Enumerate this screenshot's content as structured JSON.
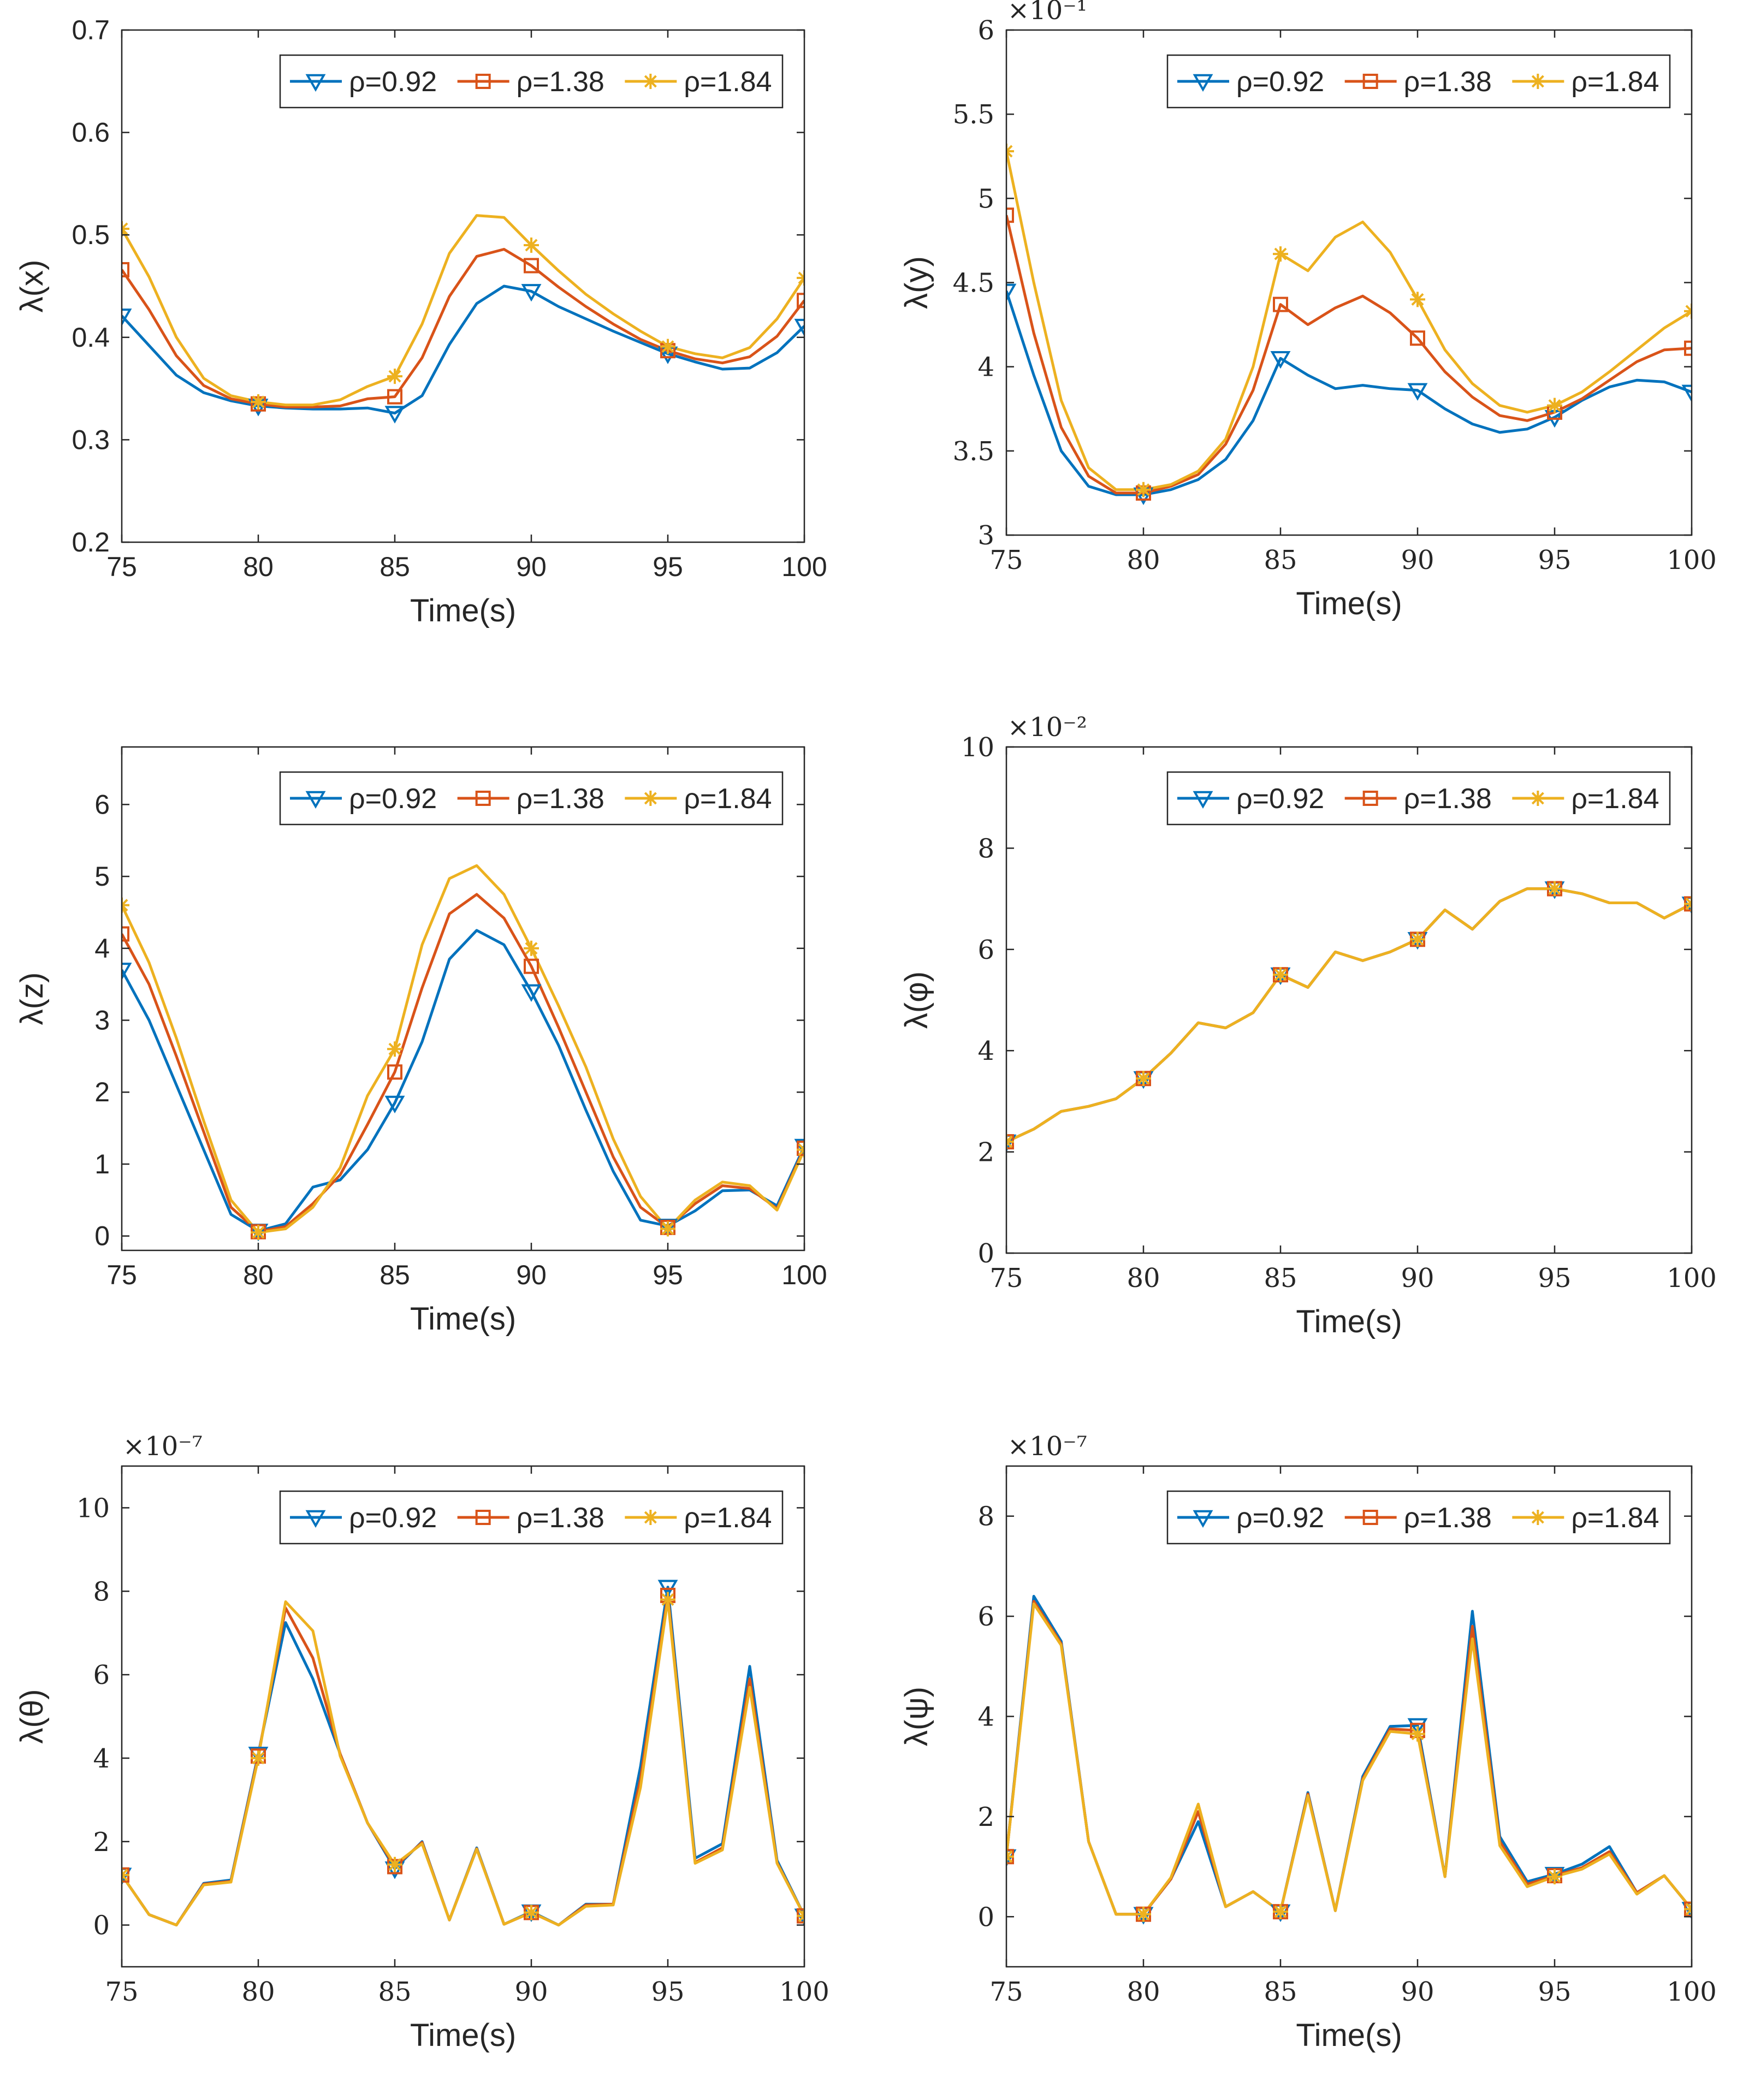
{
  "figure_title": "",
  "colors": {
    "blue": "#0072BD",
    "orange": "#D95319",
    "yellow": "#EDB120"
  },
  "chart_data": [
    {
      "type": "line",
      "name": "lambda-x",
      "xlabel": "Time(s)",
      "ylabel": "λ(x)",
      "xlim": [
        75,
        100
      ],
      "ylim": [
        0.2,
        0.7
      ],
      "xticks": [
        75,
        80,
        85,
        90,
        95,
        100
      ],
      "xtick_labels": [
        "75",
        "80",
        "85",
        "90",
        "95",
        "100"
      ],
      "yticks": [
        0.2,
        0.3,
        0.4,
        0.5,
        0.6,
        0.7
      ],
      "ytick_labels": [
        "0.2",
        "0.3",
        "0.4",
        "0.5",
        "0.6",
        "0.7"
      ],
      "tick_font": "sans",
      "exponent_label": "",
      "legend_position": "top-right",
      "x": [
        75,
        76,
        77,
        78,
        79,
        80,
        81,
        82,
        83,
        84,
        85,
        86,
        87,
        88,
        89,
        90,
        91,
        92,
        93,
        94,
        95,
        96,
        97,
        98,
        99,
        100
      ],
      "marker_x": [
        75,
        80,
        85,
        90,
        95,
        100
      ],
      "series": [
        {
          "name": "ρ=0.92",
          "color": "#0072BD",
          "marker": "triangle-down",
          "values": [
            0.421,
            0.392,
            0.363,
            0.346,
            0.338,
            0.333,
            0.331,
            0.33,
            0.33,
            0.331,
            0.326,
            0.343,
            0.393,
            0.433,
            0.45,
            0.445,
            0.43,
            0.418,
            0.406,
            0.395,
            0.384,
            0.376,
            0.369,
            0.37,
            0.385,
            0.411
          ]
        },
        {
          "name": "ρ=1.38",
          "color": "#D95319",
          "marker": "square",
          "values": [
            0.466,
            0.427,
            0.382,
            0.353,
            0.34,
            0.335,
            0.332,
            0.332,
            0.333,
            0.34,
            0.342,
            0.38,
            0.44,
            0.479,
            0.486,
            0.47,
            0.449,
            0.43,
            0.413,
            0.398,
            0.387,
            0.379,
            0.375,
            0.381,
            0.401,
            0.436
          ]
        },
        {
          "name": "ρ=1.84",
          "color": "#EDB120",
          "marker": "asterisk",
          "values": [
            0.506,
            0.459,
            0.4,
            0.36,
            0.343,
            0.337,
            0.334,
            0.334,
            0.339,
            0.352,
            0.362,
            0.413,
            0.482,
            0.519,
            0.517,
            0.49,
            0.465,
            0.442,
            0.423,
            0.406,
            0.391,
            0.384,
            0.38,
            0.39,
            0.418,
            0.458
          ]
        }
      ]
    },
    {
      "type": "line",
      "name": "lambda-y",
      "xlabel": "Time(s)",
      "ylabel": "λ(y)",
      "xlim": [
        75,
        100
      ],
      "ylim": [
        3,
        6
      ],
      "xticks": [
        75,
        80,
        85,
        90,
        95,
        100
      ],
      "xtick_labels": [
        "75",
        "80",
        "85",
        "90",
        "95",
        "100"
      ],
      "yticks": [
        3,
        3.5,
        4,
        4.5,
        5,
        5.5,
        6
      ],
      "ytick_labels": [
        "3",
        "3.5",
        "4",
        "4.5",
        "5",
        "5.5",
        "6"
      ],
      "tick_font": "serif",
      "exponent_label": "×10⁻¹",
      "legend_position": "top-right",
      "x": [
        75,
        76,
        77,
        78,
        79,
        80,
        81,
        82,
        83,
        84,
        85,
        86,
        87,
        88,
        89,
        90,
        91,
        92,
        93,
        94,
        95,
        96,
        97,
        98,
        99,
        100
      ],
      "marker_x": [
        75,
        80,
        85,
        90,
        95,
        100
      ],
      "series": [
        {
          "name": "ρ=0.92",
          "color": "#0072BD",
          "marker": "triangle-down",
          "values": [
            4.45,
            3.95,
            3.5,
            3.29,
            3.24,
            3.24,
            3.27,
            3.33,
            3.45,
            3.68,
            4.05,
            3.95,
            3.87,
            3.89,
            3.87,
            3.86,
            3.75,
            3.66,
            3.61,
            3.63,
            3.7,
            3.8,
            3.88,
            3.92,
            3.91,
            3.85
          ]
        },
        {
          "name": "ρ=1.38",
          "color": "#D95319",
          "marker": "square",
          "values": [
            4.9,
            4.2,
            3.64,
            3.35,
            3.25,
            3.25,
            3.29,
            3.36,
            3.54,
            3.86,
            4.37,
            4.25,
            4.35,
            4.42,
            4.32,
            4.17,
            3.97,
            3.82,
            3.71,
            3.68,
            3.73,
            3.81,
            3.92,
            4.03,
            4.1,
            4.11
          ]
        },
        {
          "name": "ρ=1.84",
          "color": "#EDB120",
          "marker": "asterisk",
          "values": [
            5.28,
            4.5,
            3.8,
            3.4,
            3.27,
            3.27,
            3.3,
            3.38,
            3.57,
            4.0,
            4.67,
            4.57,
            4.77,
            4.86,
            4.68,
            4.4,
            4.1,
            3.9,
            3.77,
            3.73,
            3.77,
            3.85,
            3.97,
            4.1,
            4.23,
            4.33
          ]
        }
      ]
    },
    {
      "type": "line",
      "name": "lambda-z",
      "xlabel": "Time(s)",
      "ylabel": "λ(z)",
      "xlim": [
        75,
        100
      ],
      "ylim": [
        -0.2,
        6.8
      ],
      "xticks": [
        75,
        80,
        85,
        90,
        95,
        100
      ],
      "xtick_labels": [
        "75",
        "80",
        "85",
        "90",
        "95",
        "100"
      ],
      "yticks": [
        0,
        1,
        2,
        3,
        4,
        5,
        6
      ],
      "ytick_labels": [
        "0",
        "1",
        "2",
        "3",
        "4",
        "5",
        "6"
      ],
      "tick_font": "sans",
      "exponent_label": "",
      "legend_position": "top-right",
      "x": [
        75,
        76,
        77,
        78,
        79,
        80,
        81,
        82,
        83,
        84,
        85,
        86,
        87,
        88,
        89,
        90,
        91,
        92,
        93,
        94,
        95,
        96,
        97,
        98,
        99,
        100
      ],
      "marker_x": [
        75,
        80,
        85,
        90,
        95,
        100
      ],
      "series": [
        {
          "name": "ρ=0.92",
          "color": "#0072BD",
          "marker": "triangle-down",
          "values": [
            3.7,
            3.0,
            2.1,
            1.2,
            0.3,
            0.07,
            0.17,
            0.68,
            0.78,
            1.2,
            1.85,
            2.7,
            3.85,
            4.25,
            4.05,
            3.4,
            2.65,
            1.75,
            0.9,
            0.22,
            0.14,
            0.35,
            0.63,
            0.64,
            0.42,
            1.25
          ]
        },
        {
          "name": "ρ=1.38",
          "color": "#D95319",
          "marker": "square",
          "values": [
            4.2,
            3.5,
            2.5,
            1.45,
            0.4,
            0.06,
            0.13,
            0.45,
            0.85,
            1.55,
            2.28,
            3.45,
            4.48,
            4.75,
            4.42,
            3.75,
            2.9,
            2.0,
            1.1,
            0.4,
            0.12,
            0.45,
            0.7,
            0.66,
            0.38,
            1.22
          ]
        },
        {
          "name": "ρ=1.84",
          "color": "#EDB120",
          "marker": "asterisk",
          "values": [
            4.6,
            3.8,
            2.75,
            1.6,
            0.5,
            0.05,
            0.1,
            0.4,
            0.95,
            1.95,
            2.6,
            4.05,
            4.97,
            5.15,
            4.75,
            4.0,
            3.2,
            2.35,
            1.35,
            0.55,
            0.1,
            0.5,
            0.75,
            0.7,
            0.36,
            1.2
          ]
        }
      ]
    },
    {
      "type": "line",
      "name": "lambda-phi",
      "xlabel": "Time(s)",
      "ylabel": "λ(φ)",
      "xlim": [
        75,
        100
      ],
      "ylim": [
        0,
        10
      ],
      "xticks": [
        75,
        80,
        85,
        90,
        95,
        100
      ],
      "xtick_labels": [
        "75",
        "80",
        "85",
        "90",
        "95",
        "100"
      ],
      "yticks": [
        0,
        2,
        4,
        6,
        8,
        10
      ],
      "ytick_labels": [
        "0",
        "2",
        "4",
        "6",
        "8",
        "10"
      ],
      "tick_font": "serif",
      "exponent_label": "×10⁻²",
      "legend_position": "top-right",
      "x": [
        75,
        76,
        77,
        78,
        79,
        80,
        81,
        82,
        83,
        84,
        85,
        86,
        87,
        88,
        89,
        90,
        91,
        92,
        93,
        94,
        95,
        96,
        97,
        98,
        99,
        100
      ],
      "marker_x": [
        75,
        80,
        85,
        90,
        95,
        100
      ],
      "series": [
        {
          "name": "ρ=0.92",
          "color": "#0072BD",
          "marker": "triangle-down",
          "values": [
            2.2,
            2.45,
            2.8,
            2.9,
            3.05,
            3.45,
            3.95,
            4.55,
            4.45,
            4.75,
            5.5,
            5.25,
            5.95,
            5.78,
            5.95,
            6.2,
            6.78,
            6.4,
            6.95,
            7.2,
            7.2,
            7.1,
            6.92,
            6.92,
            6.62,
            6.9
          ]
        },
        {
          "name": "ρ=1.38",
          "color": "#D95319",
          "marker": "square",
          "values": [
            2.2,
            2.45,
            2.8,
            2.9,
            3.05,
            3.45,
            3.95,
            4.55,
            4.45,
            4.75,
            5.5,
            5.25,
            5.95,
            5.78,
            5.95,
            6.2,
            6.78,
            6.4,
            6.95,
            7.2,
            7.2,
            7.1,
            6.92,
            6.92,
            6.62,
            6.9
          ]
        },
        {
          "name": "ρ=1.84",
          "color": "#EDB120",
          "marker": "asterisk",
          "values": [
            2.2,
            2.45,
            2.8,
            2.9,
            3.05,
            3.45,
            3.95,
            4.55,
            4.45,
            4.75,
            5.5,
            5.25,
            5.95,
            5.78,
            5.95,
            6.2,
            6.78,
            6.4,
            6.95,
            7.2,
            7.2,
            7.1,
            6.92,
            6.92,
            6.62,
            6.9
          ]
        }
      ]
    },
    {
      "type": "line",
      "name": "lambda-theta",
      "xlabel": "Time(s)",
      "ylabel": "λ(θ)",
      "xlim": [
        75,
        100
      ],
      "ylim": [
        -1,
        11
      ],
      "xticks": [
        75,
        80,
        85,
        90,
        95,
        100
      ],
      "xtick_labels": [
        "75",
        "80",
        "85",
        "90",
        "95",
        "100"
      ],
      "yticks": [
        0,
        2,
        4,
        6,
        8,
        10
      ],
      "ytick_labels": [
        "0",
        "2",
        "4",
        "6",
        "8",
        "10"
      ],
      "tick_font": "serif",
      "exponent_label": "×10⁻⁷",
      "legend_position": "top-right",
      "x": [
        75,
        76,
        77,
        78,
        79,
        80,
        81,
        82,
        83,
        84,
        85,
        86,
        87,
        88,
        89,
        90,
        91,
        92,
        93,
        94,
        95,
        96,
        97,
        98,
        99,
        100
      ],
      "marker_x": [
        75,
        80,
        85,
        90,
        95,
        100
      ],
      "series": [
        {
          "name": "ρ=0.92",
          "color": "#0072BD",
          "marker": "triangle-down",
          "values": [
            1.2,
            0.25,
            0.0,
            1.0,
            1.08,
            4.1,
            7.25,
            5.9,
            4.1,
            2.45,
            1.35,
            2.0,
            0.12,
            1.85,
            0.02,
            0.32,
            0.0,
            0.5,
            0.5,
            3.8,
            8.1,
            1.6,
            1.95,
            6.2,
            1.55,
            0.22
          ]
        },
        {
          "name": "ρ=1.38",
          "color": "#D95319",
          "marker": "square",
          "values": [
            1.2,
            0.25,
            0.0,
            0.98,
            1.05,
            4.05,
            7.6,
            6.4,
            4.1,
            2.45,
            1.4,
            1.98,
            0.12,
            1.83,
            0.02,
            0.3,
            0.0,
            0.48,
            0.5,
            3.5,
            7.9,
            1.5,
            1.85,
            5.9,
            1.5,
            0.22
          ]
        },
        {
          "name": "ρ=1.84",
          "color": "#EDB120",
          "marker": "asterisk",
          "values": [
            1.2,
            0.25,
            0.0,
            0.96,
            1.03,
            4.0,
            7.75,
            7.05,
            4.05,
            2.45,
            1.45,
            1.95,
            0.12,
            1.82,
            0.02,
            0.3,
            0.0,
            0.45,
            0.48,
            3.3,
            7.8,
            1.48,
            1.8,
            5.7,
            1.48,
            0.22
          ]
        }
      ]
    },
    {
      "type": "line",
      "name": "lambda-psi",
      "xlabel": "Time(s)",
      "ylabel": "λ(ψ)",
      "xlim": [
        75,
        100
      ],
      "ylim": [
        -1,
        9
      ],
      "xticks": [
        75,
        80,
        85,
        90,
        95,
        100
      ],
      "xtick_labels": [
        "75",
        "80",
        "85",
        "90",
        "95",
        "100"
      ],
      "yticks": [
        0,
        2,
        4,
        6,
        8
      ],
      "ytick_labels": [
        "0",
        "2",
        "4",
        "6",
        "8"
      ],
      "tick_font": "serif",
      "exponent_label": "×10⁻⁷",
      "legend_position": "top-right",
      "x": [
        75,
        76,
        77,
        78,
        79,
        80,
        81,
        82,
        83,
        84,
        85,
        86,
        87,
        88,
        89,
        90,
        91,
        92,
        93,
        94,
        95,
        96,
        97,
        98,
        99,
        100
      ],
      "marker_x": [
        75,
        80,
        85,
        90,
        95,
        100
      ],
      "series": [
        {
          "name": "ρ=0.92",
          "color": "#0072BD",
          "marker": "triangle-down",
          "values": [
            1.2,
            6.4,
            5.5,
            1.5,
            0.05,
            0.05,
            0.75,
            1.9,
            0.2,
            0.5,
            0.1,
            2.48,
            0.12,
            2.8,
            3.8,
            3.82,
            0.8,
            6.1,
            1.6,
            0.7,
            0.85,
            1.05,
            1.4,
            0.48,
            0.82,
            0.15
          ]
        },
        {
          "name": "ρ=1.38",
          "color": "#D95319",
          "marker": "square",
          "values": [
            1.2,
            6.3,
            5.45,
            1.5,
            0.05,
            0.05,
            0.75,
            2.1,
            0.2,
            0.5,
            0.1,
            2.45,
            0.12,
            2.75,
            3.75,
            3.72,
            0.8,
            5.8,
            1.5,
            0.65,
            0.82,
            0.98,
            1.3,
            0.48,
            0.82,
            0.15
          ]
        },
        {
          "name": "ρ=1.84",
          "color": "#EDB120",
          "marker": "asterisk",
          "values": [
            1.2,
            6.25,
            5.42,
            1.5,
            0.05,
            0.05,
            0.78,
            2.25,
            0.2,
            0.5,
            0.1,
            2.42,
            0.12,
            2.72,
            3.7,
            3.65,
            0.8,
            5.55,
            1.42,
            0.6,
            0.8,
            0.95,
            1.25,
            0.45,
            0.82,
            0.15
          ]
        }
      ]
    }
  ]
}
